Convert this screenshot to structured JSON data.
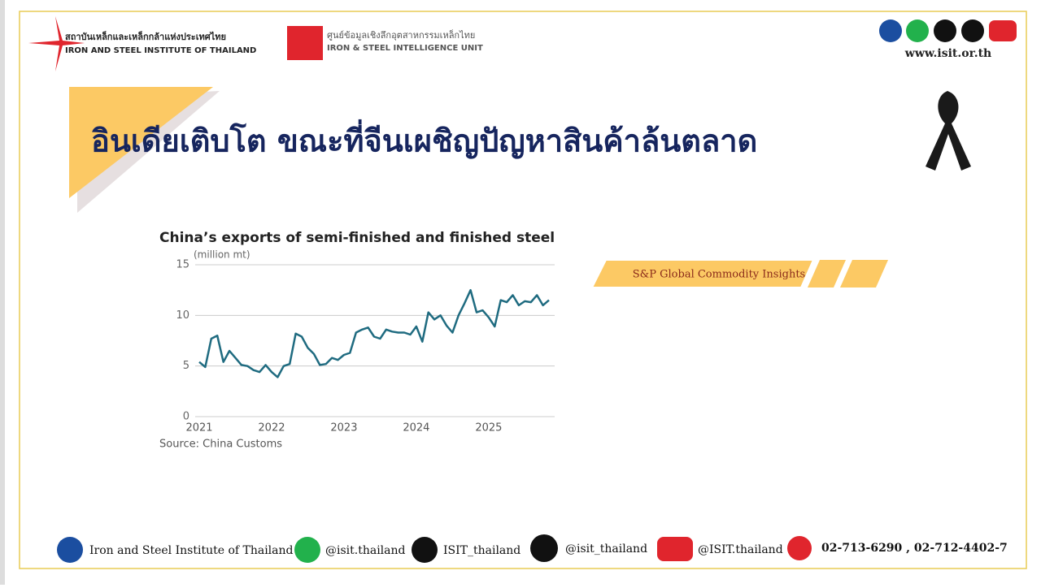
{
  "header": {
    "org_thai": "สถาบันเหล็กและเหล็กกล้าแห่งประเทศไทย",
    "org_en": "IRON AND STEEL INSTITUTE OF THAILAND",
    "unit_thai": "ศูนย์ข้อมูลเชิงลึกอุตสาหกรรมเหล็กไทย",
    "unit_en": "IRON & STEEL INTELLIGENCE UNIT",
    "website": "www.isit.or.th"
  },
  "title": "อินเดียเติบโต ขณะที่จีนเผชิญปัญหาสินค้าล้นตลาด",
  "source_tag": "S&P Global Commodity Insights",
  "chart_data": {
    "type": "line",
    "title": "China’s exports of semi-finished and finished steel",
    "y_label": "(million mt)",
    "source": "Source: China Customs",
    "color": "#1f6b80",
    "categories": [
      "2021",
      null,
      null,
      null,
      null,
      null,
      null,
      null,
      null,
      null,
      null,
      null,
      "2022",
      null,
      null,
      null,
      null,
      null,
      null,
      null,
      null,
      null,
      null,
      null,
      "2023",
      null,
      null,
      null,
      null,
      null,
      null,
      null,
      null,
      null,
      null,
      null,
      "2024",
      null,
      null,
      null,
      null,
      null,
      null,
      null,
      null,
      null,
      null,
      null,
      "2025",
      null,
      null,
      null,
      null,
      null,
      null,
      null,
      null,
      null,
      null
    ],
    "values": [
      5.4,
      4.9,
      7.7,
      8.0,
      5.4,
      6.5,
      5.8,
      5.1,
      5.0,
      4.6,
      4.4,
      5.1,
      4.4,
      3.9,
      5.0,
      5.2,
      8.2,
      7.9,
      6.8,
      6.2,
      5.1,
      5.2,
      5.8,
      5.6,
      6.1,
      6.3,
      8.3,
      8.6,
      8.8,
      7.9,
      7.7,
      8.6,
      8.4,
      8.3,
      8.3,
      8.1,
      8.9,
      7.4,
      10.3,
      9.6,
      10.0,
      9.0,
      8.3,
      10.0,
      11.2,
      12.5,
      10.3,
      10.5,
      9.8,
      8.9,
      11.5,
      11.3,
      12.0,
      11.0,
      11.4,
      11.3,
      12.0,
      11.0,
      11.5
    ],
    "ylim": [
      0,
      15
    ],
    "yticks": [
      0,
      5,
      10,
      15
    ],
    "grid": true
  },
  "footer": {
    "facebook": "Iron and Steel Institute of Thailand",
    "line": "@isit.thailand",
    "x": "ISIT_thailand",
    "tiktok": "@isit_thailand",
    "youtube": "@ISIT.thailand",
    "phone": "02-713-6290 , 02-712-4402-7"
  }
}
